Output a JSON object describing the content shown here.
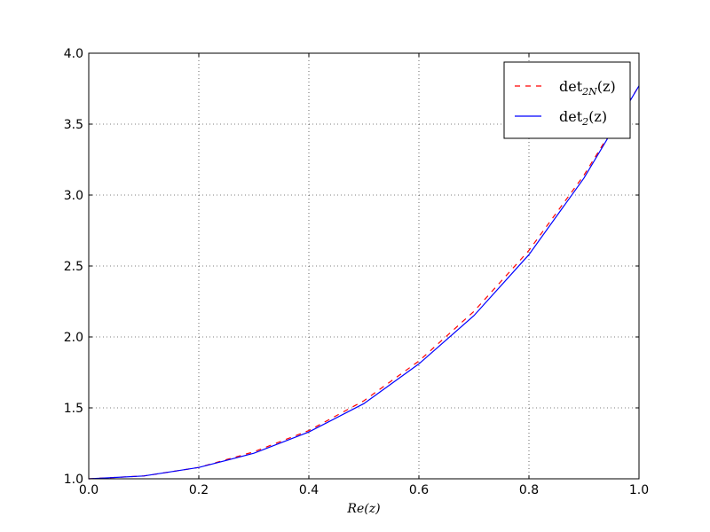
{
  "chart_data": {
    "type": "line",
    "xlabel": "Re(z)",
    "x": [
      0.0,
      0.1,
      0.2,
      0.3,
      0.4,
      0.5,
      0.6,
      0.7,
      0.8,
      0.9,
      1.0
    ],
    "series": [
      {
        "name": "det2N(z)",
        "color": "#ff0000",
        "dashed": true,
        "values": [
          1.0,
          1.02,
          1.08,
          1.19,
          1.34,
          1.55,
          1.83,
          2.18,
          2.61,
          3.14,
          3.77
        ]
      },
      {
        "name": "det2(z)",
        "color": "#0000ff",
        "dashed": false,
        "values": [
          1.0,
          1.02,
          1.08,
          1.18,
          1.33,
          1.53,
          1.81,
          2.15,
          2.58,
          3.12,
          3.77
        ]
      }
    ],
    "xlim": [
      0.0,
      1.0
    ],
    "ylim": [
      1.0,
      4.0
    ],
    "xticks": [
      {
        "value": 0,
        "label": "0.0"
      },
      {
        "value": 0.2,
        "label": "0.2"
      },
      {
        "value": 0.4,
        "label": "0.4"
      },
      {
        "value": 0.6,
        "label": "0.6"
      },
      {
        "value": 0.8,
        "label": "0.8"
      },
      {
        "value": 1,
        "label": "1.0"
      }
    ],
    "yticks": [
      {
        "value": 1,
        "label": "1.0"
      },
      {
        "value": 1.5,
        "label": "1.5"
      },
      {
        "value": 2,
        "label": "2.0"
      },
      {
        "value": 2.5,
        "label": "2.5"
      },
      {
        "value": 3,
        "label": "3.0"
      },
      {
        "value": 3.5,
        "label": "3.5"
      },
      {
        "value": 4,
        "label": "4.0"
      }
    ],
    "grid": true,
    "legend": "upper right"
  }
}
